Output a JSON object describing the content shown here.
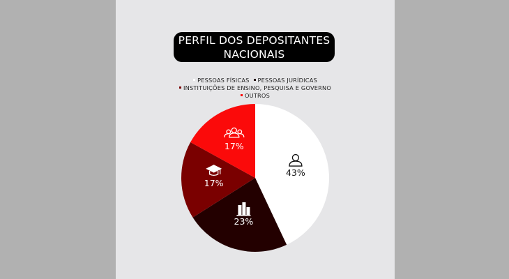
{
  "title": {
    "line1": "PERFIL DOS DEPOSITANTES",
    "line2": "NACIONAIS"
  },
  "legend": [
    {
      "label": "PESSOAS FÍSICAS",
      "color": "#ffffff"
    },
    {
      "label": "PESSOAS JURÍDICAS",
      "color": "#230000"
    },
    {
      "label": "INSTITUIÇÕES DE ENSINO, PESQUISA E GOVERNO",
      "color": "#7a0000"
    },
    {
      "label": "OUTROS",
      "color": "#fb0a0a"
    }
  ],
  "chart_data": {
    "type": "pie",
    "title": "PERFIL DOS DEPOSITANTES NACIONAIS",
    "categories": [
      "PESSOAS FÍSICAS",
      "PESSOAS JURÍDICAS",
      "INSTITUIÇÕES DE ENSINO, PESQUISA E GOVERNO",
      "OUTROS"
    ],
    "values": [
      43,
      23,
      17,
      17
    ],
    "labels": [
      "43%",
      "23%",
      "17%",
      "17%"
    ],
    "colors": [
      "#ffffff",
      "#230000",
      "#7a0000",
      "#fb0a0a"
    ],
    "icons": [
      "person-icon",
      "building-icon",
      "graduation-cap-icon",
      "group-icon"
    ],
    "legend_position": "top"
  }
}
